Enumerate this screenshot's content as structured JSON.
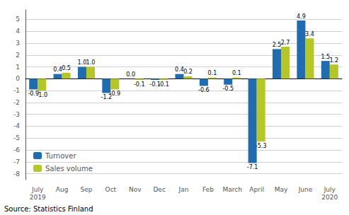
{
  "chart_data": {
    "type": "bar",
    "categories": [
      "July\n2019",
      "Aug",
      "Sep",
      "Oct",
      "Nov",
      "Dec",
      "Jan",
      "Feb",
      "March",
      "April",
      "May",
      "June",
      "July\n2020"
    ],
    "series": [
      {
        "name": "Turnover",
        "color": "#1f6cb0",
        "values": [
          -0.9,
          0.4,
          1.0,
          -1.2,
          0.0,
          -0.1,
          0.4,
          -0.6,
          -0.5,
          -7.1,
          2.5,
          4.9,
          1.5
        ],
        "value_labels": [
          "-0.9",
          "0.4",
          "1.0",
          "-1.2",
          "0.0",
          "-0.1",
          "0.4",
          "-0.6",
          "-0.5",
          "-7.1",
          "2.5",
          "4.9",
          "1.5"
        ]
      },
      {
        "name": "Sales volume",
        "color": "#b5c726",
        "values": [
          -1.0,
          0.5,
          1.0,
          -0.9,
          -0.1,
          -0.1,
          0.2,
          0.1,
          0.1,
          -5.3,
          2.7,
          3.4,
          1.2
        ],
        "value_labels": [
          "-1.0",
          "0.5",
          "1.0",
          "-0.9",
          "-0.1",
          "-0.1",
          "0.2",
          "0.1",
          "0.1",
          "-5.3",
          "2.7",
          "3.4",
          "1.2"
        ]
      }
    ],
    "ylim": [
      -8.5,
      5.8
    ],
    "yticks": [
      -8,
      -7,
      -6,
      -5,
      -4,
      -3,
      -2,
      -1,
      0,
      1,
      2,
      3,
      4,
      5
    ],
    "grid": true,
    "legend": "lower left",
    "data_labels": true,
    "annotations": [
      "Source: Statistics Finland"
    ]
  }
}
